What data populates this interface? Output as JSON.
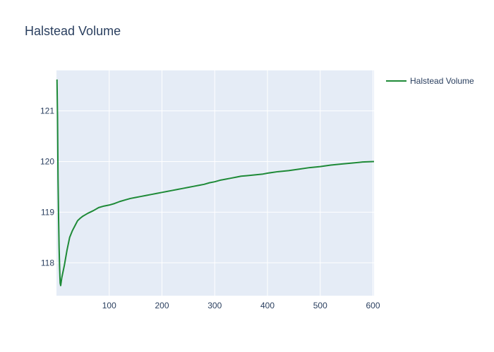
{
  "chart_data": {
    "type": "line",
    "title": "Halstead Volume",
    "xlabel": "",
    "ylabel": "",
    "xlim": [
      0,
      602
    ],
    "ylim": [
      117.35,
      121.8
    ],
    "grid": true,
    "legend_position": "top-right",
    "x_ticks": [
      "100",
      "200",
      "300",
      "400",
      "500",
      "600"
    ],
    "y_ticks": [
      "118",
      "119",
      "120",
      "121"
    ],
    "series": [
      {
        "name": "Halstead Volume",
        "color": "#1e8a37",
        "x": [
          1,
          2,
          3,
          4,
          5,
          6,
          7,
          8,
          10,
          12,
          15,
          20,
          25,
          30,
          35,
          40,
          45,
          50,
          55,
          60,
          70,
          80,
          90,
          100,
          110,
          120,
          130,
          140,
          150,
          160,
          170,
          180,
          190,
          200,
          210,
          220,
          230,
          240,
          250,
          260,
          270,
          280,
          290,
          300,
          310,
          320,
          330,
          340,
          350,
          360,
          370,
          380,
          390,
          400,
          420,
          440,
          460,
          480,
          500,
          520,
          540,
          560,
          580,
          600,
          602
        ],
        "values": [
          121.62,
          120.9,
          119.65,
          118.9,
          118.3,
          117.9,
          117.6,
          117.55,
          117.7,
          117.8,
          117.95,
          118.25,
          118.5,
          118.63,
          118.73,
          118.83,
          118.88,
          118.92,
          118.95,
          118.98,
          119.03,
          119.09,
          119.12,
          119.14,
          119.17,
          119.21,
          119.24,
          119.27,
          119.29,
          119.31,
          119.33,
          119.35,
          119.37,
          119.39,
          119.41,
          119.43,
          119.45,
          119.47,
          119.49,
          119.51,
          119.53,
          119.55,
          119.58,
          119.6,
          119.63,
          119.65,
          119.67,
          119.69,
          119.71,
          119.72,
          119.73,
          119.74,
          119.75,
          119.77,
          119.8,
          119.82,
          119.85,
          119.88,
          119.9,
          119.93,
          119.95,
          119.97,
          119.99,
          120.0,
          120.0
        ]
      }
    ]
  }
}
